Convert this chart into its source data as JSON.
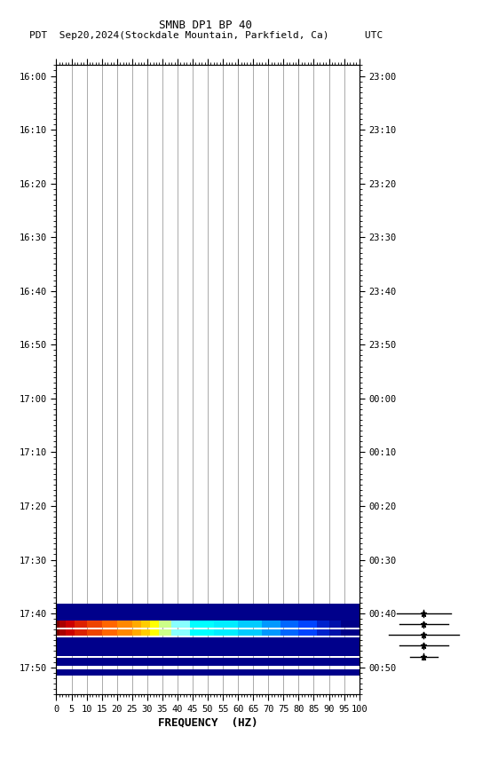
{
  "title1": "SMNB DP1 BP 40",
  "title2": "PDT  Sep20,2024(Stockdale Mountain, Parkfield, Ca)      UTC",
  "xlabel": "FREQUENCY  (HZ)",
  "freq_ticks": [
    0,
    5,
    10,
    15,
    20,
    25,
    30,
    35,
    40,
    45,
    50,
    55,
    60,
    65,
    70,
    75,
    80,
    85,
    90,
    95,
    100
  ],
  "xlim": [
    0,
    100
  ],
  "left_times": [
    "16:00",
    "16:10",
    "16:20",
    "16:30",
    "16:40",
    "16:50",
    "17:00",
    "17:10",
    "17:20",
    "17:30",
    "17:40",
    "17:50"
  ],
  "left_time_minutes": [
    0,
    10,
    20,
    30,
    40,
    50,
    60,
    70,
    80,
    90,
    100,
    110
  ],
  "right_times": [
    "23:00",
    "23:10",
    "23:20",
    "23:30",
    "23:40",
    "23:50",
    "00:00",
    "00:10",
    "00:20",
    "00:30",
    "00:40",
    "00:50"
  ],
  "bg_color": "#ffffff",
  "vlines_freq": [
    5,
    10,
    15,
    20,
    25,
    30,
    35,
    40,
    45,
    50,
    55,
    60,
    65,
    70,
    75,
    80,
    85,
    90,
    95
  ],
  "band1_colors": [
    [
      0,
      1,
      "#7f0000"
    ],
    [
      1,
      3,
      "#aa0000"
    ],
    [
      3,
      6,
      "#cc0000"
    ],
    [
      6,
      10,
      "#dd2200"
    ],
    [
      10,
      15,
      "#ee4400"
    ],
    [
      15,
      20,
      "#ff6600"
    ],
    [
      20,
      25,
      "#ff8800"
    ],
    [
      25,
      28,
      "#ffaa00"
    ],
    [
      28,
      31,
      "#ffcc00"
    ],
    [
      31,
      34,
      "#ffff00"
    ],
    [
      34,
      38,
      "#ccff88"
    ],
    [
      38,
      44,
      "#88ffff"
    ],
    [
      44,
      52,
      "#00ffff"
    ],
    [
      52,
      60,
      "#00eeff"
    ],
    [
      60,
      68,
      "#00ccff"
    ],
    [
      68,
      74,
      "#0099ff"
    ],
    [
      74,
      80,
      "#0066ff"
    ],
    [
      80,
      86,
      "#0044ff"
    ],
    [
      86,
      90,
      "#0022cc"
    ],
    [
      90,
      94,
      "#0011aa"
    ],
    [
      94,
      100,
      "#000088"
    ]
  ],
  "legend_y_pos": [
    100,
    102,
    104,
    106,
    108
  ],
  "legend_line_widths": [
    5.0,
    4.5,
    6.5,
    4.5,
    2.5
  ]
}
